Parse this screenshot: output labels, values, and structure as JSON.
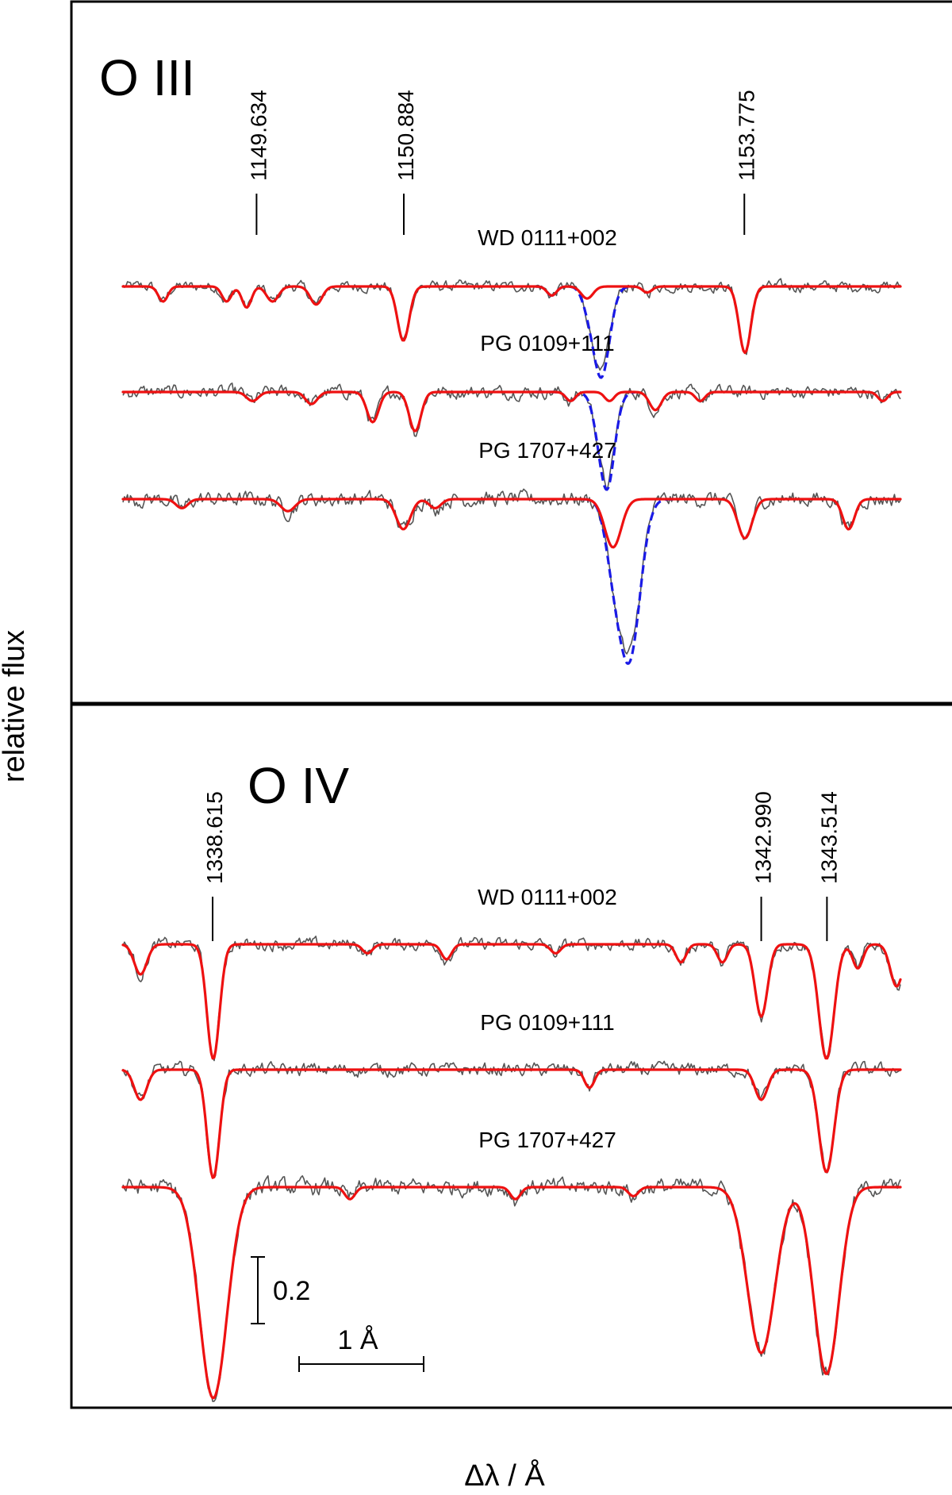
{
  "chart_data": {
    "type": "line",
    "ylabel": "relative flux",
    "xlabel": "Δλ / Å",
    "scale_bar": {
      "flux_label": "0.2",
      "flux_value": 0.2,
      "wavelength_label": "1 Å",
      "wavelength_value": 1.0
    },
    "colors": {
      "observation": "#555555",
      "model": "#ee1111",
      "model_alt": "#1a1ae6"
    },
    "panels": [
      {
        "ion": "O III",
        "x_range_angstrom": [
          1148.5,
          1155.1
        ],
        "line_markers": [
          {
            "label": "1149.634",
            "wavelength": 1149.634
          },
          {
            "label": "1150.884",
            "wavelength": 1150.884
          },
          {
            "label": "1153.775",
            "wavelength": 1153.775
          }
        ],
        "series": [
          {
            "name": "WD 0111+002",
            "continuum_offset": 1.62,
            "noise": 0.025,
            "model_absorptions": [
              {
                "wavelength": 1148.84,
                "depth": 0.05,
                "width": 0.04
              },
              {
                "wavelength": 1149.38,
                "depth": 0.05,
                "width": 0.04
              },
              {
                "wavelength": 1149.55,
                "depth": 0.07,
                "width": 0.04
              },
              {
                "wavelength": 1149.77,
                "depth": 0.05,
                "width": 0.05
              },
              {
                "wavelength": 1150.14,
                "depth": 0.06,
                "width": 0.05
              },
              {
                "wavelength": 1150.88,
                "depth": 0.18,
                "width": 0.05
              },
              {
                "wavelength": 1152.14,
                "depth": 0.03,
                "width": 0.04
              },
              {
                "wavelength": 1152.44,
                "depth": 0.04,
                "width": 0.05
              },
              {
                "wavelength": 1152.95,
                "depth": 0.02,
                "width": 0.04
              },
              {
                "wavelength": 1153.78,
                "depth": 0.22,
                "width": 0.05
              }
            ],
            "alt_model_absorption": {
              "wavelength": 1152.56,
              "depth": 0.3,
              "width": 0.07,
              "range": [
                1152.0,
                1152.85
              ]
            }
          },
          {
            "name": "PG 0109+111",
            "continuum_offset": 1.28,
            "noise": 0.03,
            "model_absorptions": [
              {
                "wavelength": 1149.6,
                "depth": 0.03,
                "width": 0.05
              },
              {
                "wavelength": 1150.1,
                "depth": 0.04,
                "width": 0.05
              },
              {
                "wavelength": 1150.62,
                "depth": 0.1,
                "width": 0.05
              },
              {
                "wavelength": 1150.98,
                "depth": 0.13,
                "width": 0.05
              },
              {
                "wavelength": 1152.3,
                "depth": 0.03,
                "width": 0.04
              },
              {
                "wavelength": 1152.63,
                "depth": 0.03,
                "width": 0.04
              },
              {
                "wavelength": 1153.02,
                "depth": 0.06,
                "width": 0.05
              },
              {
                "wavelength": 1153.4,
                "depth": 0.03,
                "width": 0.04
              },
              {
                "wavelength": 1154.95,
                "depth": 0.03,
                "width": 0.04
              }
            ],
            "alt_model_absorption": {
              "wavelength": 1152.6,
              "depth": 0.3,
              "width": 0.07,
              "range": [
                1152.0,
                1152.85
              ]
            }
          },
          {
            "name": "PG 1707+427",
            "continuum_offset": 0.96,
            "noise": 0.035,
            "model_absorptions": [
              {
                "wavelength": 1149.0,
                "depth": 0.03,
                "width": 0.05
              },
              {
                "wavelength": 1149.9,
                "depth": 0.04,
                "width": 0.06
              },
              {
                "wavelength": 1150.88,
                "depth": 0.1,
                "width": 0.06
              },
              {
                "wavelength": 1151.15,
                "depth": 0.03,
                "width": 0.05
              },
              {
                "wavelength": 1152.66,
                "depth": 0.16,
                "width": 0.07
              },
              {
                "wavelength": 1153.78,
                "depth": 0.13,
                "width": 0.06
              },
              {
                "wavelength": 1154.66,
                "depth": 0.1,
                "width": 0.05
              }
            ],
            "alt_model_absorption": {
              "wavelength": 1152.8,
              "depth": 0.52,
              "width": 0.09,
              "range": [
                1152.4,
                1153.2
              ]
            }
          }
        ]
      },
      {
        "ion": "O IV",
        "x_range_angstrom": [
          1337.9,
          1344.1
        ],
        "line_markers": [
          {
            "label": "1338.615",
            "wavelength": 1338.615
          },
          {
            "label": "1342.990",
            "wavelength": 1342.99
          },
          {
            "label": "1343.514",
            "wavelength": 1343.514
          }
        ],
        "series": [
          {
            "name": "WD 0111+002",
            "continuum_offset": 1.6,
            "noise": 0.028,
            "model_absorptions": [
              {
                "wavelength": 1338.04,
                "depth": 0.1,
                "width": 0.05
              },
              {
                "wavelength": 1338.62,
                "depth": 0.38,
                "width": 0.05
              },
              {
                "wavelength": 1339.85,
                "depth": 0.03,
                "width": 0.04
              },
              {
                "wavelength": 1340.48,
                "depth": 0.05,
                "width": 0.04
              },
              {
                "wavelength": 1341.35,
                "depth": 0.03,
                "width": 0.04
              },
              {
                "wavelength": 1342.35,
                "depth": 0.06,
                "width": 0.04
              },
              {
                "wavelength": 1342.68,
                "depth": 0.06,
                "width": 0.04
              },
              {
                "wavelength": 1342.99,
                "depth": 0.24,
                "width": 0.05
              },
              {
                "wavelength": 1343.51,
                "depth": 0.38,
                "width": 0.06
              },
              {
                "wavelength": 1343.76,
                "depth": 0.08,
                "width": 0.04
              },
              {
                "wavelength": 1344.07,
                "depth": 0.14,
                "width": 0.05
              }
            ]
          },
          {
            "name": "PG 0109+111",
            "continuum_offset": 1.19,
            "noise": 0.03,
            "model_absorptions": [
              {
                "wavelength": 1338.04,
                "depth": 0.1,
                "width": 0.05
              },
              {
                "wavelength": 1338.62,
                "depth": 0.36,
                "width": 0.05
              },
              {
                "wavelength": 1341.62,
                "depth": 0.06,
                "width": 0.04
              },
              {
                "wavelength": 1342.99,
                "depth": 0.1,
                "width": 0.05
              },
              {
                "wavelength": 1343.51,
                "depth": 0.34,
                "width": 0.06
              }
            ]
          },
          {
            "name": "PG 1707+427",
            "continuum_offset": 0.71,
            "noise": 0.038,
            "model_absorptions": [
              {
                "wavelength": 1338.62,
                "depth": 0.7,
                "width": 0.11
              },
              {
                "wavelength": 1339.71,
                "depth": 0.04,
                "width": 0.04
              },
              {
                "wavelength": 1341.03,
                "depth": 0.04,
                "width": 0.04
              },
              {
                "wavelength": 1341.97,
                "depth": 0.03,
                "width": 0.04
              },
              {
                "wavelength": 1342.99,
                "depth": 0.55,
                "width": 0.11
              },
              {
                "wavelength": 1343.51,
                "depth": 0.62,
                "width": 0.1
              }
            ]
          }
        ]
      }
    ]
  }
}
